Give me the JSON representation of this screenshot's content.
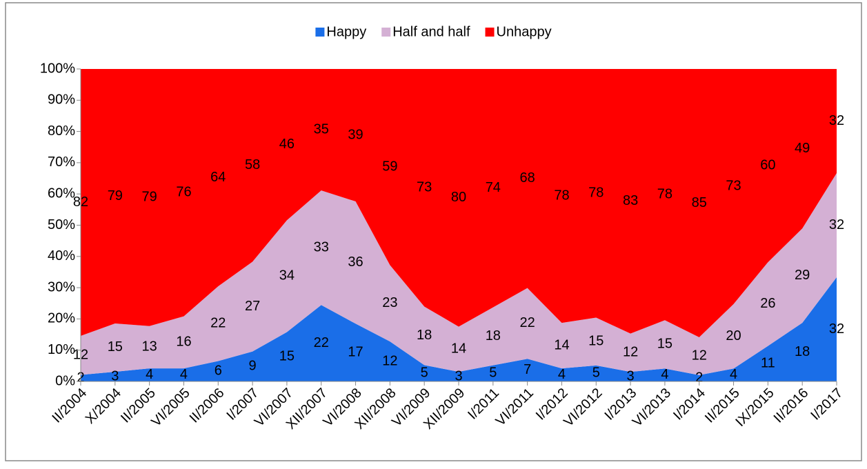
{
  "chart_data": {
    "type": "area",
    "stacking": "percent",
    "categories": [
      "II/2004",
      "X/2004",
      "II/2005",
      "VI/2005",
      "II/2006",
      "I/2007",
      "VI/2007",
      "XII/2007",
      "VI/2008",
      "XII/2008",
      "VI/2009",
      "XII/2009",
      "I/2011",
      "VI/2011",
      "I/2012",
      "VI/2012",
      "I/2013",
      "VI/2013",
      "I/2014",
      "II/2015",
      "IX/2015",
      "II/2016",
      "I/2017"
    ],
    "series": [
      {
        "name": "Happy",
        "color": "#1a6ee8",
        "values": [
          2,
          3,
          4,
          4,
          6,
          9,
          15,
          22,
          17,
          12,
          5,
          3,
          5,
          7,
          4,
          5,
          3,
          4,
          2,
          4,
          11,
          18,
          32
        ]
      },
      {
        "name": "Half and half",
        "color": "#d4b0d4",
        "values": [
          12,
          15,
          13,
          16,
          22,
          27,
          34,
          33,
          36,
          23,
          18,
          14,
          18,
          22,
          14,
          15,
          12,
          15,
          12,
          20,
          26,
          29,
          32
        ]
      },
      {
        "name": "Unhappy",
        "color": "#ff0000",
        "values": [
          82,
          79,
          79,
          76,
          64,
          58,
          46,
          35,
          39,
          59,
          73,
          80,
          74,
          68,
          78,
          78,
          83,
          78,
          85,
          73,
          60,
          49,
          32
        ]
      }
    ],
    "ylim": [
      0,
      100
    ],
    "yticks": [
      {
        "value": 0,
        "label": "0%"
      },
      {
        "value": 10,
        "label": "10%"
      },
      {
        "value": 20,
        "label": "20%"
      },
      {
        "value": 30,
        "label": "30%"
      },
      {
        "value": 40,
        "label": "40%"
      },
      {
        "value": 50,
        "label": "50%"
      },
      {
        "value": 60,
        "label": "60%"
      },
      {
        "value": 70,
        "label": "70%"
      },
      {
        "value": 80,
        "label": "80%"
      },
      {
        "value": 90,
        "label": "90%"
      },
      {
        "value": 100,
        "label": "100%"
      }
    ],
    "legend": "top",
    "data_labels": true
  }
}
